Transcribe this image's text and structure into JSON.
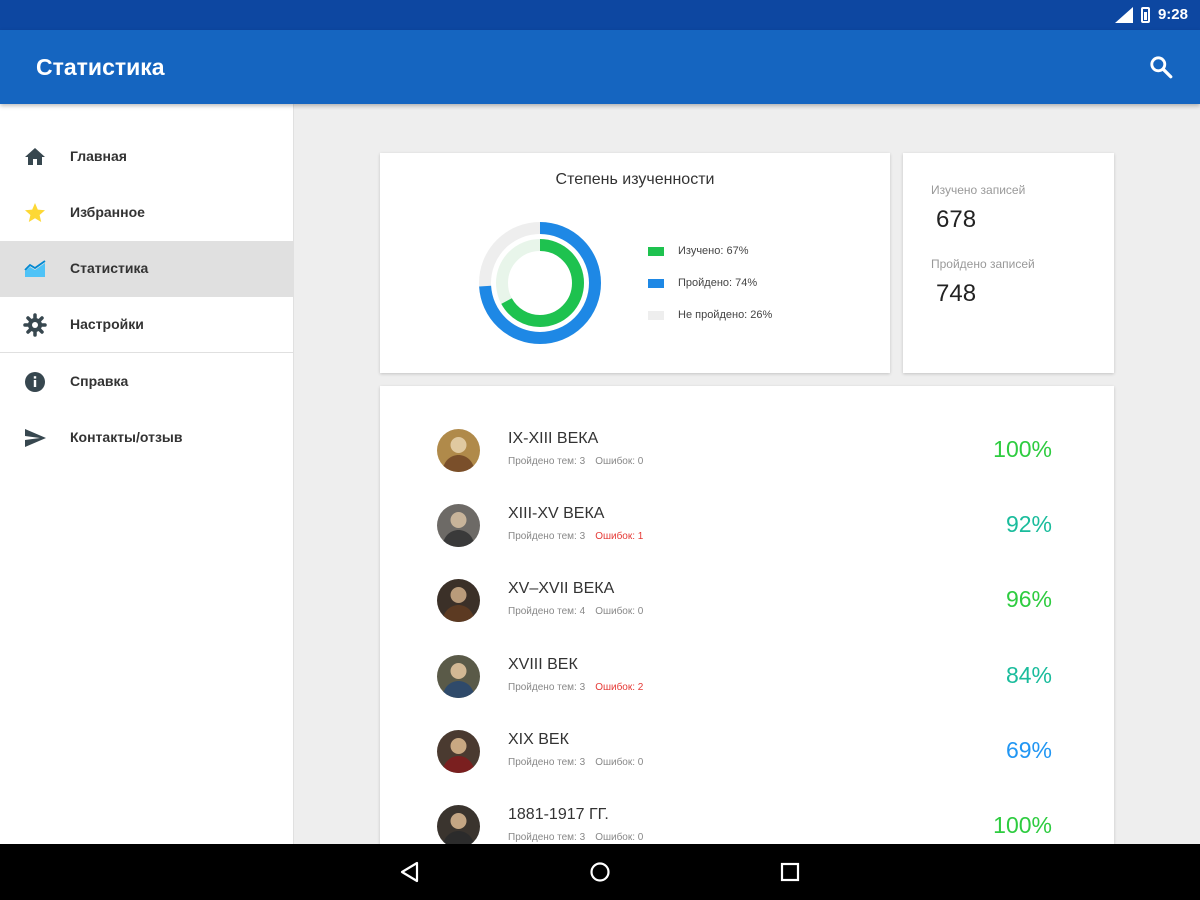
{
  "status_bar": {
    "time": "9:28"
  },
  "app_bar": {
    "title": "Статистика"
  },
  "drawer": {
    "items": [
      {
        "label": "Главная",
        "icon": "home-icon",
        "active": false
      },
      {
        "label": "Избранное",
        "icon": "star-icon",
        "active": false
      },
      {
        "label": "Статистика",
        "icon": "chart-icon",
        "active": true
      },
      {
        "label": "Настройки",
        "icon": "gear-icon",
        "active": false
      },
      {
        "label": "Справка",
        "icon": "info-icon",
        "active": false
      },
      {
        "label": "Контакты/отзыв",
        "icon": "send-icon",
        "active": false
      }
    ]
  },
  "progress_card": {
    "title": "Степень изученности",
    "legend": [
      {
        "label": "Изучено: 67%",
        "color": "#1ec24f"
      },
      {
        "label": "Пройдено: 74%",
        "color": "#1e88e5"
      },
      {
        "label": "Не пройдено: 26%",
        "color": "#eeeeee"
      }
    ]
  },
  "chart_data": {
    "type": "pie",
    "title": "Степень изученности",
    "series": [
      {
        "name": "Изучено",
        "value": 67,
        "color": "#1ec24f"
      },
      {
        "name": "Пройдено",
        "value": 74,
        "color": "#1e88e5"
      },
      {
        "name": "Не пройдено",
        "value": 26,
        "color": "#eeeeee"
      }
    ]
  },
  "counts_card": {
    "studied_label": "Изучено записей",
    "studied_value": "678",
    "passed_label": "Пройдено записей",
    "passed_value": "748"
  },
  "topics": [
    {
      "name": "IX-XIII ВЕКА",
      "passed": "Пройдено тем: 3",
      "errors": "Ошибок: 0",
      "errors_bad": false,
      "percent": "100%",
      "percent_color": "#2ecc40",
      "avatar_color": "#b08a4a"
    },
    {
      "name": "XIII-XV ВЕКА",
      "passed": "Пройдено тем: 3",
      "errors": "Ошибок: 1",
      "errors_bad": true,
      "percent": "92%",
      "percent_color": "#1abc9c",
      "avatar_color": "#6d6a66"
    },
    {
      "name": "XV–XVII ВЕКА",
      "passed": "Пройдено тем: 4",
      "errors": "Ошибок: 0",
      "errors_bad": false,
      "percent": "96%",
      "percent_color": "#2ecc40",
      "avatar_color": "#3b3028"
    },
    {
      "name": "XVIII ВЕК",
      "passed": "Пройдено тем: 3",
      "errors": "Ошибок: 2",
      "errors_bad": true,
      "percent": "84%",
      "percent_color": "#1abc9c",
      "avatar_color": "#5a5a48"
    },
    {
      "name": "XIX ВЕК",
      "passed": "Пройдено тем: 3",
      "errors": "Ошибок: 0",
      "errors_bad": false,
      "percent": "69%",
      "percent_color": "#2196f3",
      "avatar_color": "#4a3a30"
    },
    {
      "name": "1881-1917 ГГ.",
      "passed": "Пройдено тем: 3",
      "errors": "Ошибок: 0",
      "errors_bad": false,
      "percent": "100%",
      "percent_color": "#2ecc40",
      "avatar_color": "#3a342e"
    }
  ]
}
